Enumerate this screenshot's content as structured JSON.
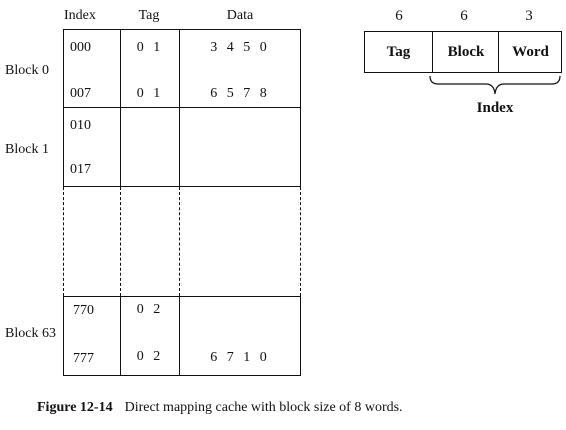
{
  "cache_table": {
    "headers": {
      "index": "Index",
      "tag": "Tag",
      "data": "Data"
    },
    "blocks": [
      {
        "label": "Block 0",
        "rows": [
          {
            "index": "000",
            "tag": "0 1",
            "data": "3 4 5 0"
          },
          {
            "index": "007",
            "tag": "0 1",
            "data": "6 5 7 8"
          }
        ]
      },
      {
        "label": "Block 1",
        "rows": [
          {
            "index": "010",
            "tag": "",
            "data": ""
          },
          {
            "index": "017",
            "tag": "",
            "data": ""
          }
        ]
      },
      {
        "label": "Block 63",
        "rows": [
          {
            "index": "770",
            "tag": "0 2",
            "data": ""
          },
          {
            "index": "777",
            "tag": "0 2",
            "data": "6 7 1 0"
          }
        ]
      }
    ]
  },
  "address_format": {
    "fields": [
      {
        "name": "Tag",
        "bits": "6"
      },
      {
        "name": "Block",
        "bits": "6"
      },
      {
        "name": "Word",
        "bits": "3"
      }
    ],
    "brace_label": "Index"
  },
  "caption": {
    "number": "Figure 12-14",
    "text": "Direct mapping cache with block size of 8 words."
  }
}
